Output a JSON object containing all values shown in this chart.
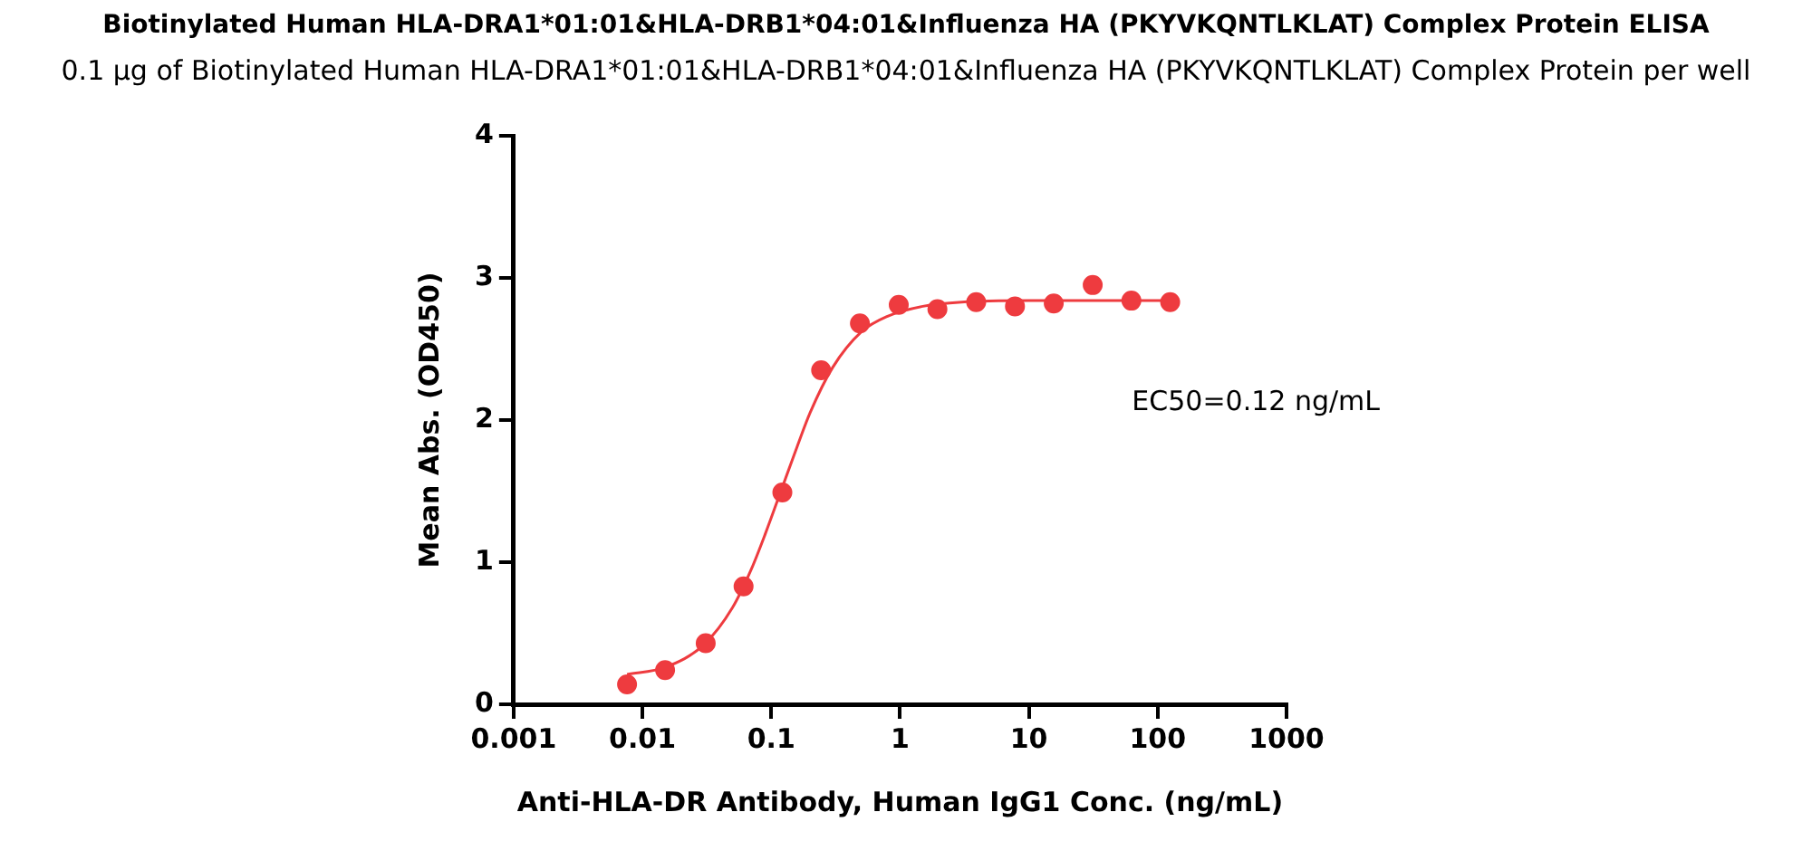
{
  "chart_data": {
    "type": "scatter",
    "title": "Biotinylated Human HLA-DRA1*01:01&HLA-DRB1*04:01&Influenza HA (PKYVKQNTLKLAT) Complex Protein ELISA",
    "subtitle": "0.1 μg of Biotinylated Human HLA-DRA1*01:01&HLA-DRB1*04:01&Influenza HA (PKYVKQNTLKLAT) Complex Protein per well",
    "xlabel": "Anti-HLA-DR Antibody, Human IgG1 Conc. (ng/mL)",
    "ylabel": "Mean Abs. (OD450)",
    "annotations": [
      "EC50=0.12 ng/mL"
    ],
    "log": "x",
    "xlim": [
      0.001,
      1000
    ],
    "xticks": [
      0.001,
      0.01,
      0.1,
      1,
      10,
      100,
      1000
    ],
    "ylim": [
      0,
      4
    ],
    "yticks": [
      0,
      1,
      2,
      3,
      4
    ],
    "grid": false,
    "legend": false,
    "marker": "circle",
    "series": [
      {
        "type": "scatter",
        "color": "#ee3b3f",
        "x": [
          0.0076,
          0.015,
          0.031,
          0.061,
          0.122,
          0.244,
          0.488,
          0.977,
          1.95,
          3.9,
          7.8,
          15.6,
          31.3,
          62.5,
          125
        ],
        "values": [
          0.14,
          0.24,
          0.43,
          0.83,
          1.49,
          2.35,
          2.68,
          2.81,
          2.78,
          2.83,
          2.8,
          2.82,
          2.95,
          2.84,
          2.83
        ]
      },
      {
        "type": "line",
        "color": "#ee3b3f",
        "marker": "none",
        "line_style": "solid",
        "x": [
          0.0076,
          0.015,
          0.03,
          0.05,
          0.07,
          0.09,
          0.12,
          0.16,
          0.2,
          0.3,
          0.5,
          0.8,
          1.5,
          3,
          10,
          125
        ],
        "values": [
          0.21,
          0.26,
          0.42,
          0.68,
          0.95,
          1.2,
          1.51,
          1.82,
          2.05,
          2.37,
          2.62,
          2.73,
          2.8,
          2.83,
          2.84,
          2.84
        ]
      }
    ]
  }
}
